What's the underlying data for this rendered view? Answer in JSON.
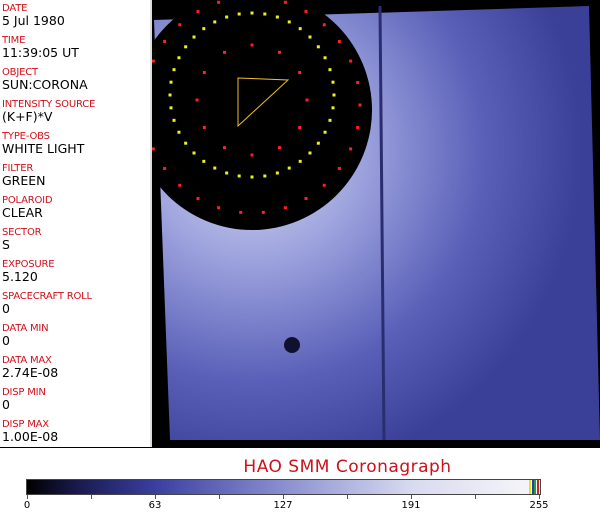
{
  "info_panel": {
    "fields": [
      {
        "label": "DATE",
        "value": "5 Jul 1980"
      },
      {
        "label": "TIME",
        "value": "11:39:05 UT"
      },
      {
        "label": "OBJECT",
        "value": "SUN:CORONA"
      },
      {
        "label": "INTENSITY SOURCE",
        "value": "(K+F)*V"
      },
      {
        "label": "TYPE-OBS",
        "value": "WHITE LIGHT"
      },
      {
        "label": "FILTER",
        "value": "GREEN"
      },
      {
        "label": "POLAROID",
        "value": "CLEAR"
      },
      {
        "label": "SECTOR",
        "value": "S"
      },
      {
        "label": "EXPOSURE",
        "value": "5.120"
      },
      {
        "label": "SPACECRAFT ROLL",
        "value": "0"
      },
      {
        "label": "DATA MIN",
        "value": "0"
      },
      {
        "label": "DATA MAX",
        "value": "2.74E-08"
      },
      {
        "label": "DISP MIN",
        "value": "0"
      },
      {
        "label": "DISP MAX",
        "value": "1.00E-08"
      }
    ]
  },
  "title": "HAO  SMM Coronagraph",
  "colorbar": {
    "tick_labels": [
      "0",
      "63",
      "127",
      "191",
      "255"
    ],
    "top_colors": [
      "#e8e020",
      "#2040c0",
      "#20a040",
      "#d02020"
    ]
  },
  "colors": {
    "label": "#d0101c",
    "corona": "#4a50b0",
    "overlay_yellow": "#f0f020",
    "overlay_red": "#ff2020"
  }
}
